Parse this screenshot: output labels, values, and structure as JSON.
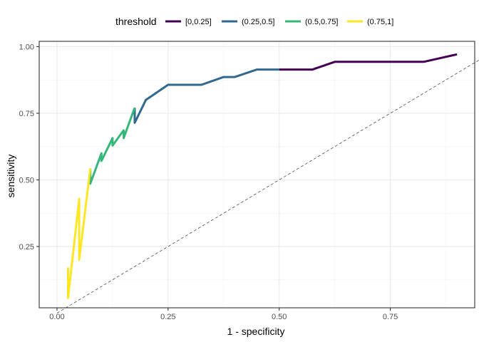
{
  "chart_data": {
    "type": "line",
    "xlabel": "1 - specificity",
    "ylabel": "sensitivity",
    "xlim": [
      -0.04,
      0.94
    ],
    "ylim": [
      0.02,
      1.02
    ],
    "x_ticks": [
      0.0,
      0.25,
      0.5,
      0.75
    ],
    "x_tick_labels": [
      "0.00",
      "0.25",
      "0.50",
      "0.75"
    ],
    "y_ticks": [
      0.25,
      0.5,
      0.75,
      1.0
    ],
    "y_tick_labels": [
      "0.25",
      "0.50",
      "0.75",
      "1.00"
    ],
    "grid": true,
    "legend": {
      "title": "threshold",
      "position": "top"
    },
    "reference_line": {
      "style": "dashed",
      "from": [
        0,
        0
      ],
      "to": [
        1,
        1
      ]
    },
    "series": [
      {
        "name": "[0,0.25]",
        "color": "#440154",
        "points": [
          [
            0.5,
            0.914
          ],
          [
            0.575,
            0.914
          ],
          [
            0.625,
            0.943
          ],
          [
            0.825,
            0.943
          ],
          [
            0.9,
            0.971
          ]
        ]
      },
      {
        "name": "(0.25,0.5]",
        "color": "#31688E",
        "points": [
          [
            0.175,
            0.771
          ],
          [
            0.175,
            0.714
          ],
          [
            0.2,
            0.8
          ],
          [
            0.25,
            0.857
          ],
          [
            0.325,
            0.857
          ],
          [
            0.375,
            0.886
          ],
          [
            0.4,
            0.886
          ],
          [
            0.45,
            0.914
          ],
          [
            0.5,
            0.914
          ]
        ]
      },
      {
        "name": "(0.5,0.75]",
        "color": "#35B779",
        "points": [
          [
            0.075,
            0.543
          ],
          [
            0.075,
            0.486
          ],
          [
            0.1,
            0.6
          ],
          [
            0.1,
            0.571
          ],
          [
            0.125,
            0.657
          ],
          [
            0.125,
            0.629
          ],
          [
            0.15,
            0.686
          ],
          [
            0.15,
            0.657
          ],
          [
            0.175,
            0.771
          ]
        ]
      },
      {
        "name": "(0.75,1]",
        "color": "#FDE725",
        "points": [
          [
            0.025,
            0.171
          ],
          [
            0.025,
            0.057
          ],
          [
            0.05,
            0.429
          ],
          [
            0.05,
            0.2
          ],
          [
            0.075,
            0.543
          ]
        ]
      }
    ]
  }
}
